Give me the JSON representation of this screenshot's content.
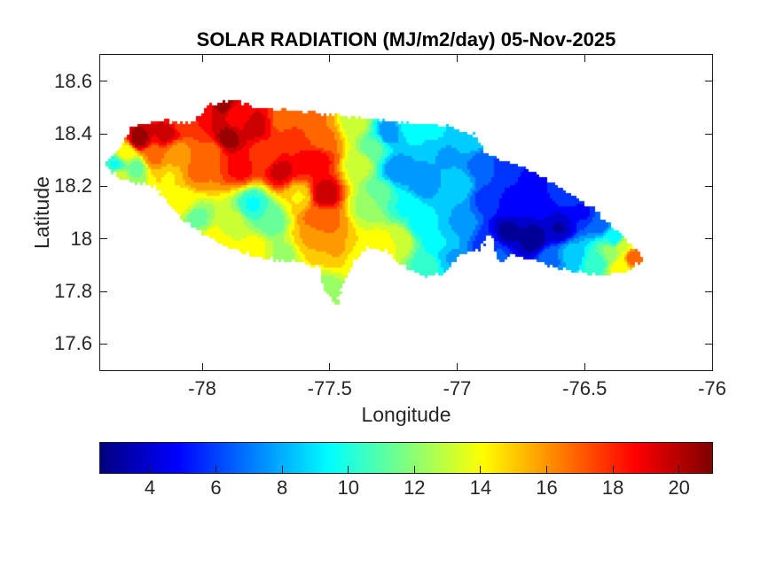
{
  "figure": {
    "title": "SOLAR RADIATION (MJ/m2/day) 05-Nov-2025",
    "background_color": "#ffffff"
  },
  "axes": {
    "xlabel": "Longitude",
    "ylabel": "Latitude",
    "xlim": [
      -78.4,
      -76.0
    ],
    "ylim": [
      17.5,
      18.7
    ],
    "xticks": [
      -78,
      -77.5,
      -77,
      -76.5,
      -76
    ],
    "xtick_labels": [
      "-78",
      "-77.5",
      "-77",
      "-76.5",
      "-76"
    ],
    "yticks": [
      18.6,
      18.4,
      18.2,
      18.0,
      17.8,
      17.6
    ],
    "ytick_labels": [
      "18.6",
      "18.4",
      "18.2",
      "18",
      "17.8",
      "17.6"
    ],
    "axis_color": "#1a1a1a",
    "tick_label_color": "#262626",
    "grid": false
  },
  "colorbar": {
    "orientation": "horizontal",
    "min": 2.5,
    "max": 21.0,
    "ticks": [
      4,
      6,
      8,
      10,
      12,
      14,
      16,
      18,
      20
    ],
    "tick_labels": [
      "4",
      "6",
      "8",
      "10",
      "12",
      "14",
      "16",
      "18",
      "20"
    ],
    "colormap": "jet"
  },
  "chart_data": {
    "type": "heatmap",
    "subtype": "filled-contour-map",
    "title": "SOLAR RADIATION (MJ/m2/day) 05-Nov-2025",
    "region": "Jamaica",
    "units": "MJ/m2/day",
    "xlabel": "Longitude",
    "ylabel": "Latitude",
    "value_range": [
      2.5,
      21.0
    ],
    "contour_levels": 20,
    "colormap": "jet",
    "legend_position": "south",
    "outline": [
      [
        -78.38,
        18.28
      ],
      [
        -78.34,
        18.33
      ],
      [
        -78.27,
        18.43
      ],
      [
        -78.16,
        18.45
      ],
      [
        -78.04,
        18.44
      ],
      [
        -77.97,
        18.51
      ],
      [
        -77.87,
        18.53
      ],
      [
        -77.79,
        18.5
      ],
      [
        -77.64,
        18.49
      ],
      [
        -77.49,
        18.47
      ],
      [
        -77.34,
        18.46
      ],
      [
        -77.18,
        18.44
      ],
      [
        -77.04,
        18.43
      ],
      [
        -76.94,
        18.4
      ],
      [
        -76.88,
        18.32
      ],
      [
        -76.79,
        18.29
      ],
      [
        -76.69,
        18.25
      ],
      [
        -76.57,
        18.18
      ],
      [
        -76.46,
        18.11
      ],
      [
        -76.37,
        18.03
      ],
      [
        -76.3,
        17.96
      ],
      [
        -76.27,
        17.92
      ],
      [
        -76.33,
        17.87
      ],
      [
        -76.45,
        17.86
      ],
      [
        -76.57,
        17.88
      ],
      [
        -76.68,
        17.91
      ],
      [
        -76.78,
        17.94
      ],
      [
        -76.84,
        17.91
      ],
      [
        -76.87,
        18.02
      ],
      [
        -76.91,
        17.96
      ],
      [
        -76.99,
        17.94
      ],
      [
        -77.04,
        17.87
      ],
      [
        -77.14,
        17.855
      ],
      [
        -77.22,
        17.9
      ],
      [
        -77.28,
        17.955
      ],
      [
        -77.35,
        17.97
      ],
      [
        -77.4,
        17.92
      ],
      [
        -77.44,
        17.84
      ],
      [
        -77.47,
        17.75
      ],
      [
        -77.52,
        17.8
      ],
      [
        -77.54,
        17.89
      ],
      [
        -77.61,
        17.91
      ],
      [
        -77.72,
        17.92
      ],
      [
        -77.82,
        17.94
      ],
      [
        -77.92,
        17.98
      ],
      [
        -78.0,
        18.02
      ],
      [
        -78.07,
        18.07
      ],
      [
        -78.13,
        18.13
      ],
      [
        -78.18,
        18.2
      ],
      [
        -78.27,
        18.21
      ],
      [
        -78.33,
        18.23
      ]
    ],
    "samples": [
      [
        -78.34,
        18.28,
        9.8
      ],
      [
        -78.26,
        18.27,
        11.5
      ],
      [
        -78.3,
        18.33,
        14
      ],
      [
        -78.33,
        18.24,
        13.5
      ],
      [
        -78.25,
        18.38,
        20.5
      ],
      [
        -78.14,
        18.4,
        19.5
      ],
      [
        -78.19,
        18.31,
        16.5
      ],
      [
        -78.08,
        18.45,
        17.5
      ],
      [
        -77.99,
        18.5,
        19
      ],
      [
        -77.92,
        18.52,
        20.5
      ],
      [
        -77.86,
        18.47,
        18.5
      ],
      [
        -78.1,
        18.33,
        16
      ],
      [
        -78.13,
        18.23,
        14.5
      ],
      [
        -78.02,
        18.25,
        16.5
      ],
      [
        -77.9,
        18.38,
        20.5
      ],
      [
        -77.79,
        18.43,
        19.5
      ],
      [
        -77.75,
        18.32,
        17.5
      ],
      [
        -77.68,
        18.45,
        17
      ],
      [
        -77.57,
        18.46,
        16.5
      ],
      [
        -77.85,
        18.27,
        18.5
      ],
      [
        -77.96,
        18.33,
        17
      ],
      [
        -77.69,
        18.26,
        19.5
      ],
      [
        -77.59,
        18.29,
        18.5
      ],
      [
        -77.65,
        18.37,
        18
      ],
      [
        -77.52,
        18.38,
        16.5
      ],
      [
        -78.02,
        18.08,
        11.5
      ],
      [
        -77.8,
        18.13,
        9.8
      ],
      [
        -77.73,
        18.07,
        11
      ],
      [
        -77.88,
        18.06,
        13
      ],
      [
        -77.95,
        17.99,
        14.5
      ],
      [
        -77.8,
        17.96,
        14
      ],
      [
        -77.68,
        17.94,
        12.5
      ],
      [
        -77.58,
        18.0,
        15.5
      ],
      [
        -77.62,
        18.16,
        14.5
      ],
      [
        -78.08,
        18.14,
        14
      ],
      [
        -77.54,
        18.3,
        18.5
      ],
      [
        -77.52,
        18.17,
        20
      ],
      [
        -77.5,
        18.06,
        16.5
      ],
      [
        -77.47,
        17.97,
        15.5
      ],
      [
        -77.55,
        18.08,
        17
      ],
      [
        -77.38,
        17.92,
        14
      ],
      [
        -77.3,
        17.97,
        14.5
      ],
      [
        -77.22,
        18.0,
        13.5
      ],
      [
        -77.5,
        17.79,
        12
      ],
      [
        -77.12,
        17.9,
        10.5
      ],
      [
        -77.02,
        17.93,
        8
      ],
      [
        -77.4,
        18.44,
        13
      ],
      [
        -77.38,
        18.28,
        13
      ],
      [
        -77.36,
        18.12,
        12.5
      ],
      [
        -77.32,
        18.35,
        11
      ],
      [
        -77.3,
        18.18,
        11
      ],
      [
        -77.27,
        18.4,
        7.5
      ],
      [
        -77.24,
        18.26,
        7.2
      ],
      [
        -77.14,
        18.21,
        7.5
      ],
      [
        -77.18,
        18.43,
        9.5
      ],
      [
        -77.08,
        18.41,
        9
      ],
      [
        -77.04,
        18.32,
        8
      ],
      [
        -77.15,
        18.05,
        9.5
      ],
      [
        -77.07,
        17.98,
        9
      ],
      [
        -77.2,
        18.12,
        9.8
      ],
      [
        -76.99,
        18.2,
        8.5
      ],
      [
        -76.99,
        18.06,
        8
      ],
      [
        -76.94,
        18.38,
        8.5
      ],
      [
        -76.9,
        18.28,
        6.5
      ],
      [
        -76.89,
        18.15,
        6
      ],
      [
        -76.88,
        17.97,
        5.5
      ],
      [
        -76.8,
        18.27,
        5.5
      ],
      [
        -76.78,
        18.13,
        4.8
      ],
      [
        -76.8,
        18.03,
        3.2
      ],
      [
        -76.7,
        18.0,
        3.0
      ],
      [
        -76.6,
        18.04,
        3.4
      ],
      [
        -76.67,
        18.12,
        4.5
      ],
      [
        -76.72,
        18.22,
        5.2
      ],
      [
        -76.6,
        18.17,
        5.5
      ],
      [
        -76.5,
        18.1,
        5.2
      ],
      [
        -76.55,
        17.94,
        8.5
      ],
      [
        -76.63,
        17.92,
        7
      ],
      [
        -76.44,
        18.06,
        6.5
      ],
      [
        -76.41,
        18.12,
        8
      ],
      [
        -76.38,
        18.0,
        9.5
      ],
      [
        -76.45,
        17.91,
        10.5
      ],
      [
        -76.4,
        17.95,
        12
      ],
      [
        -76.35,
        17.97,
        13.5
      ],
      [
        -76.31,
        17.93,
        16.8
      ],
      [
        -76.36,
        17.89,
        14
      ],
      [
        -76.85,
        17.93,
        6.5
      ]
    ]
  }
}
